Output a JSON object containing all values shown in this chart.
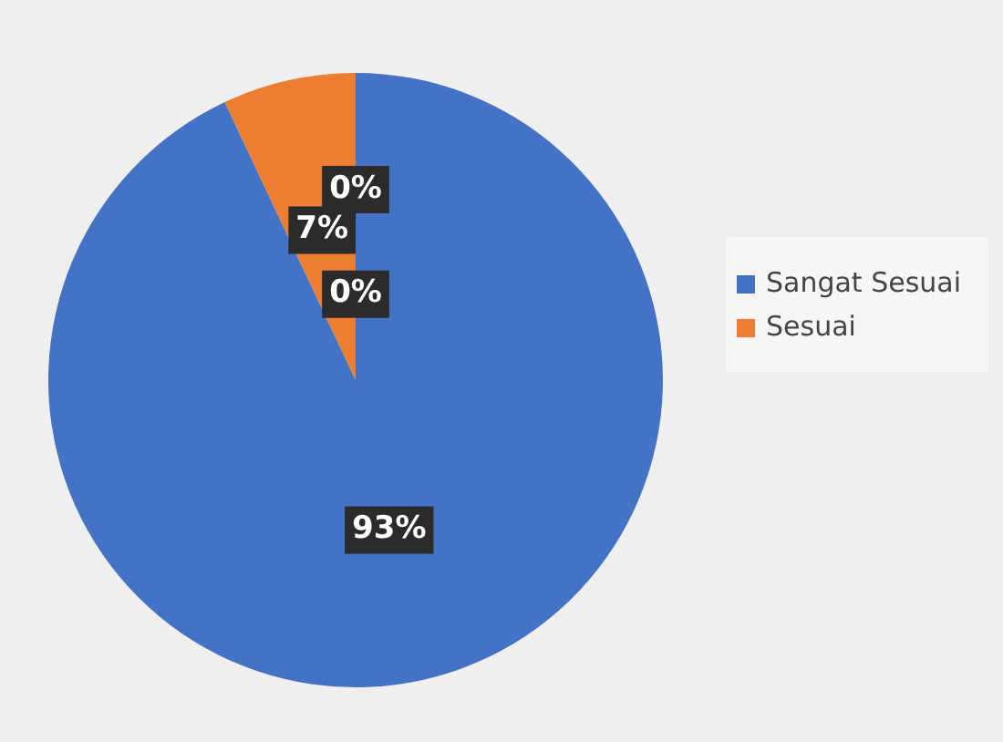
{
  "chart_data": {
    "type": "pie",
    "categories": [
      "Sangat Sesuai",
      "Sesuai",
      null,
      null
    ],
    "values": [
      93,
      7,
      0,
      0
    ],
    "colors": [
      "#4472c4",
      "#ed7d31",
      "#a5a5a5",
      "#ffc000"
    ],
    "value_labels": [
      "93%",
      "7%",
      "0%",
      "0%"
    ],
    "legend": "right"
  }
}
